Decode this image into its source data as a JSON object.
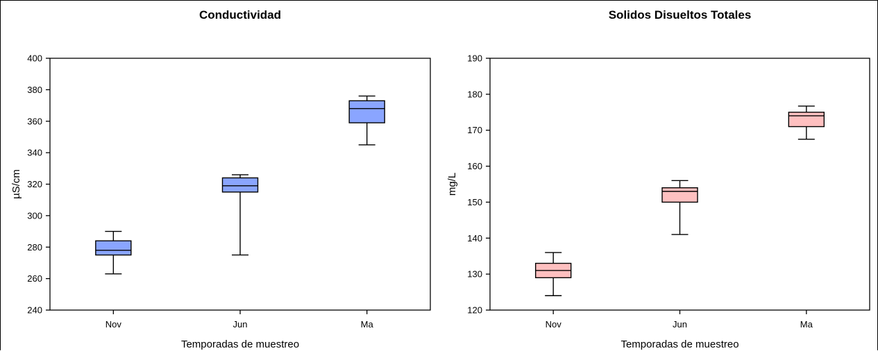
{
  "chart_data": [
    {
      "type": "box",
      "title": "Conductividad",
      "xlabel": "Temporadas de muestreo",
      "ylabel": "µS/cm",
      "ylim": [
        240,
        400
      ],
      "yticks": [
        240,
        260,
        280,
        300,
        320,
        340,
        360,
        380,
        400
      ],
      "categories": [
        "Nov",
        "Jun",
        "Ma"
      ],
      "box_color": "#8aa5ff",
      "boxes": [
        {
          "category": "Nov",
          "min": 263,
          "q1": 275,
          "median": 278,
          "q3": 284,
          "max": 290
        },
        {
          "category": "Jun",
          "min": 275,
          "q1": 315,
          "median": 319,
          "q3": 324,
          "max": 326
        },
        {
          "category": "Ma",
          "min": 345,
          "q1": 359,
          "median": 368,
          "q3": 373,
          "max": 376
        }
      ]
    },
    {
      "type": "box",
      "title": "Solidos Disueltos Totales",
      "xlabel": "Temporadas de muestreo",
      "ylabel": "mg/L",
      "ylim": [
        120,
        190
      ],
      "yticks": [
        120,
        130,
        140,
        150,
        160,
        170,
        180,
        190
      ],
      "categories": [
        "Nov",
        "Jun",
        "Ma"
      ],
      "box_color": "#ffc0c0",
      "boxes": [
        {
          "category": "Nov",
          "min": 124,
          "q1": 129,
          "median": 131,
          "q3": 133,
          "max": 136
        },
        {
          "category": "Jun",
          "min": 141,
          "q1": 150,
          "median": 153,
          "q3": 154,
          "max": 156
        },
        {
          "category": "Ma",
          "min": 167.5,
          "q1": 171,
          "median": 174,
          "q3": 175,
          "max": 176.7
        }
      ]
    }
  ]
}
